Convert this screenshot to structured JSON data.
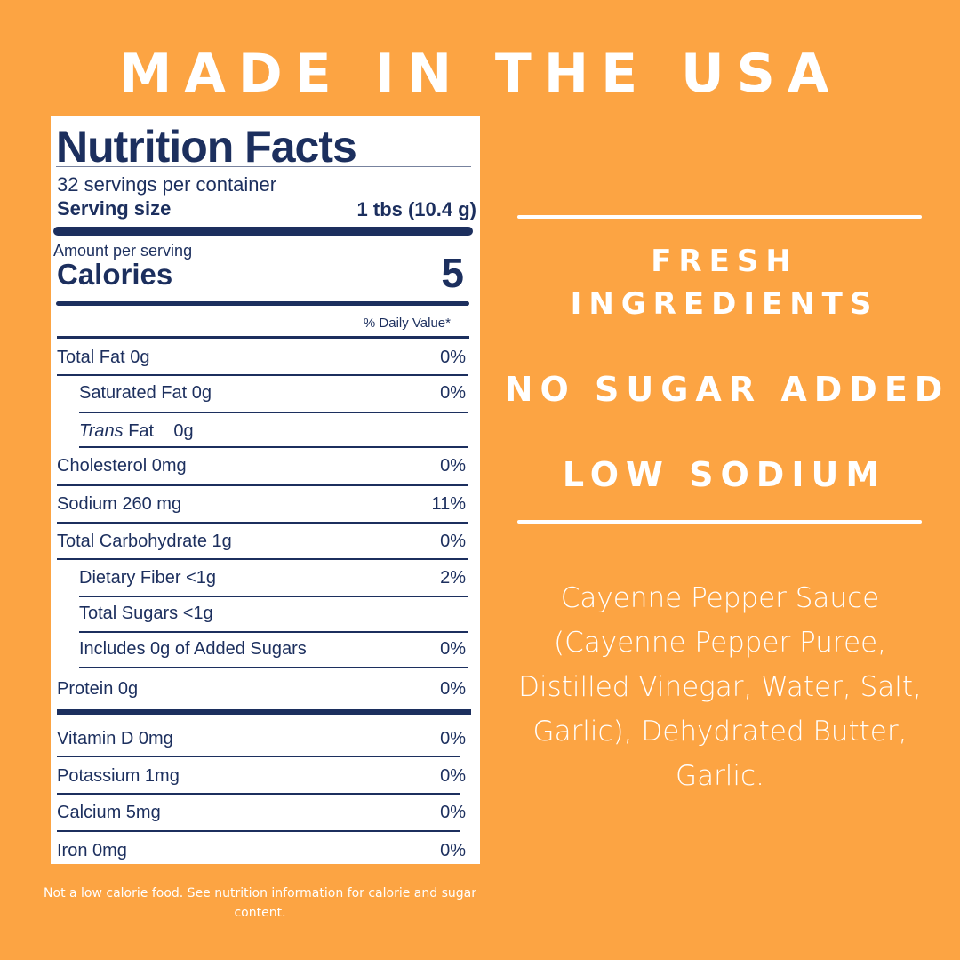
{
  "headline": "MADE IN THE USA",
  "label": {
    "title": "Nutrition Facts",
    "servings": "32 servings per container",
    "serving_size_label": "Serving size",
    "serving_size_value": "1 tbs (10.4 g)",
    "amount_per_serving": "Amount per serving",
    "calories_label": "Calories",
    "calories_value": "5",
    "daily_value_header": "% Daily Value*",
    "rows": [
      {
        "name": "Total Fat  0g",
        "pct": "0%",
        "indent": false
      },
      {
        "name": "Saturated Fat  0g",
        "pct": "0%",
        "indent": true
      },
      {
        "name": "Trans Fat    0g",
        "pct": "",
        "indent": true
      },
      {
        "name": "Cholesterol  0mg",
        "pct": "0%",
        "indent": false
      },
      {
        "name": "Sodium  260 mg",
        "pct": "11%",
        "indent": false
      },
      {
        "name": "Total Carbohydrate  1g",
        "pct": "0%",
        "indent": false
      },
      {
        "name": "Dietary Fiber  <1g",
        "pct": "2%",
        "indent": true
      },
      {
        "name": "Total Sugars  <1g",
        "pct": "",
        "indent": true
      },
      {
        "name": "Includes 0g of Added Sugars",
        "pct": "0%",
        "indent": true
      },
      {
        "name": "Protein 0g",
        "pct": "0%",
        "indent": false
      },
      {
        "name": "Vitamin D 0mg",
        "pct": "0%",
        "indent": false
      },
      {
        "name": "Potassium 1mg",
        "pct": "0%",
        "indent": false
      },
      {
        "name": "Calcium  5mg",
        "pct": "0%",
        "indent": false
      },
      {
        "name": "Iron 0mg",
        "pct": "0%",
        "indent": false
      }
    ]
  },
  "footnote": "Not a low calorie food. See nutrition information for calorie and sugar content.",
  "claims": [
    "FRESH INGREDIENTS",
    "NO SUGAR ADDED",
    "LOW SODIUM"
  ],
  "ingredients": "Cayenne Pepper Sauce (Cayenne Pepper Puree, Distilled Vinegar, Water, Salt, Garlic), Dehydrated Butter, Garlic.",
  "colors": {
    "background": "#FCA443",
    "label_text": "#1C2F5E",
    "label_bg": "#FFFFFF",
    "text": "#FFFFFF"
  }
}
